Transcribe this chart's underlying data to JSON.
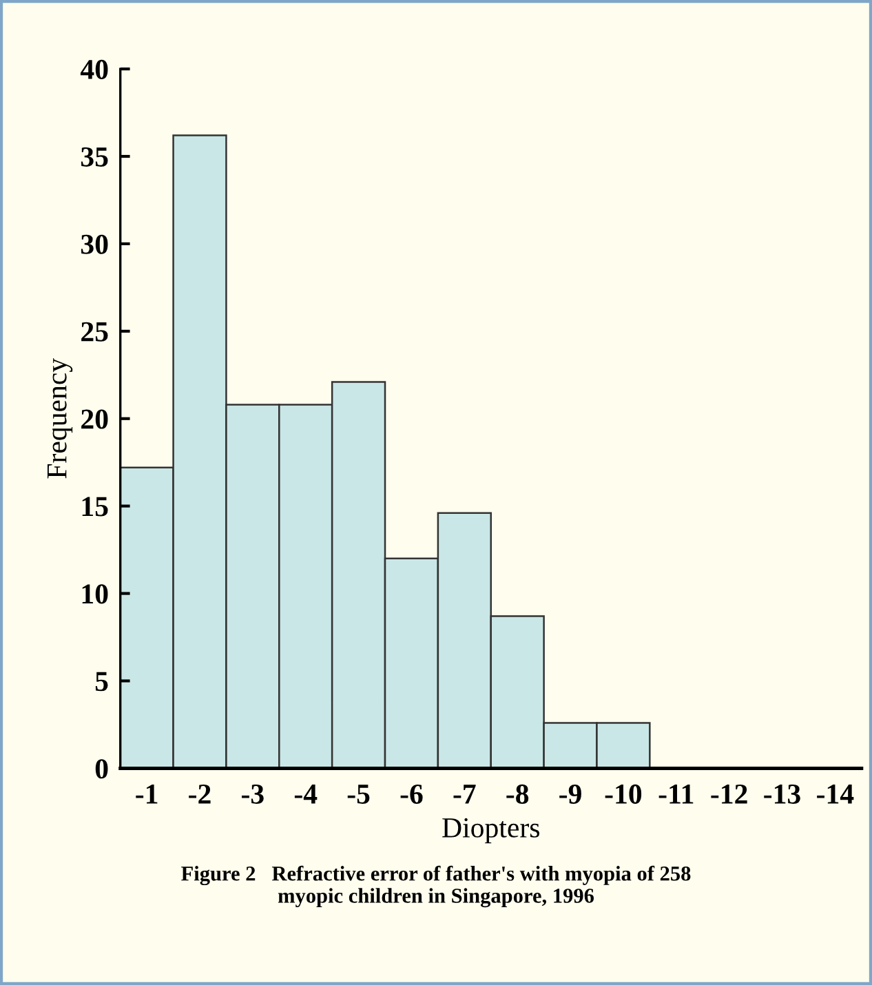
{
  "chart_data": {
    "type": "bar",
    "xlabel": "Diopters",
    "ylabel": "Frequency",
    "categories": [
      "-1",
      "-2",
      "-3",
      "-4",
      "-5",
      "-6",
      "-7",
      "-8",
      "-9",
      "-10",
      "-11",
      "-12",
      "-13",
      "-14"
    ],
    "values": [
      17.2,
      36.2,
      20.8,
      20.8,
      22.1,
      12.0,
      14.6,
      8.7,
      2.6,
      2.6,
      null,
      null,
      null,
      null
    ],
    "color": "#c9e7e6",
    "ylim": [
      0,
      40
    ],
    "yticks": [
      0,
      5,
      10,
      15,
      20,
      25,
      30,
      35,
      40
    ],
    "grid": false,
    "annotations": [
      "Figure 2   Refractive error of father's with myopia of 258\nmyopic children in Singapore, 1996"
    ]
  }
}
